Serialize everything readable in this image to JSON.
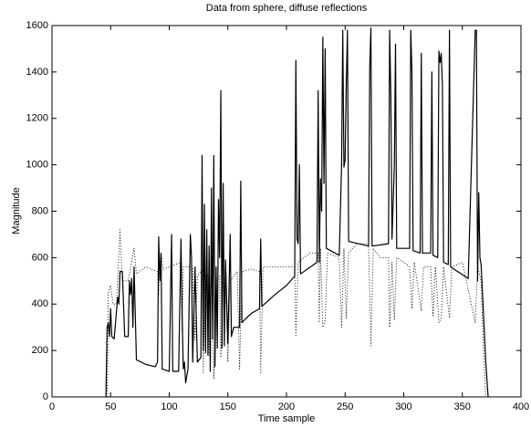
{
  "chart_data": {
    "type": "line",
    "title": "Data from sphere, diffuse reflections",
    "x_label": "Time sample",
    "y_label": "Magnitude",
    "xlim": [
      0,
      400
    ],
    "xticks": [
      0,
      50,
      100,
      150,
      200,
      250,
      300,
      350,
      400
    ],
    "ylim": [
      0,
      1600
    ],
    "yticks": [
      0,
      200,
      400,
      600,
      800,
      1000,
      1200,
      1400,
      1600
    ],
    "grid": false,
    "series": [
      {
        "color": "#000000",
        "style": "solid",
        "x": [
          46,
          47,
          48,
          49,
          50,
          51,
          53,
          56,
          57,
          58,
          60,
          62,
          65,
          66,
          67,
          68,
          69,
          70,
          72,
          80,
          88,
          90,
          91,
          92,
          93,
          94,
          100,
          102,
          103,
          108,
          110,
          111,
          112,
          113,
          114,
          116,
          118,
          119,
          120,
          122,
          124,
          127,
          128,
          129,
          130,
          131,
          132,
          133,
          134,
          135,
          136,
          137,
          138,
          139,
          140,
          141,
          142,
          143,
          144,
          145,
          146,
          147,
          148,
          150,
          152,
          153,
          155,
          160,
          161,
          162,
          170,
          177,
          178,
          179,
          190,
          200,
          207,
          208,
          209,
          210,
          211,
          212,
          226,
          227,
          228,
          229,
          230,
          231,
          232,
          233,
          234,
          245,
          247,
          248,
          249,
          250,
          251,
          252,
          253,
          270,
          271,
          272,
          273,
          287,
          288,
          289,
          290,
          292,
          293,
          294,
          305,
          306,
          307,
          308,
          314,
          315,
          316,
          323,
          324,
          325,
          329,
          330,
          331,
          332,
          333,
          334,
          338,
          339,
          340,
          355,
          361,
          362,
          363,
          364,
          365,
          366,
          370,
          372
        ],
        "values": [
          0,
          300,
          320,
          260,
          380,
          260,
          250,
          430,
          400,
          540,
          540,
          260,
          260,
          500,
          440,
          510,
          300,
          560,
          160,
          140,
          130,
          150,
          690,
          500,
          620,
          120,
          110,
          700,
          110,
          110,
          680,
          350,
          120,
          150,
          60,
          120,
          700,
          600,
          150,
          560,
          150,
          170,
          1040,
          200,
          830,
          190,
          720,
          180,
          650,
          110,
          900,
          250,
          1040,
          130,
          560,
          210,
          850,
          600,
          1320,
          210,
          920,
          220,
          590,
          230,
          700,
          260,
          300,
          300,
          930,
          320,
          360,
          380,
          680,
          390,
          440,
          480,
          520,
          1450,
          680,
          660,
          1000,
          530,
          580,
          1320,
          580,
          940,
          800,
          1550,
          920,
          1500,
          640,
          610,
          1000,
          1580,
          990,
          1020,
          1350,
          1580,
          670,
          650,
          1420,
          1590,
          650,
          660,
          1580,
          1300,
          680,
          1000,
          1520,
          640,
          640,
          1580,
          1400,
          630,
          620,
          1480,
          620,
          620,
          1400,
          610,
          600,
          1490,
          1440,
          1480,
          1340,
          580,
          570,
          1580,
          560,
          510,
          1580,
          1580,
          500,
          880,
          600,
          570,
          150,
          0
        ]
      },
      {
        "color": "#000000",
        "style": "dotted",
        "x": [
          47,
          48,
          50,
          52,
          55,
          58,
          60,
          65,
          70,
          72,
          80,
          90,
          91,
          93,
          95,
          100,
          110,
          111,
          112,
          120,
          122,
          124,
          128,
          129,
          131,
          133,
          134,
          136,
          138,
          140,
          143,
          144,
          146,
          148,
          150,
          152,
          158,
          160,
          162,
          170,
          177,
          178,
          180,
          190,
          200,
          207,
          208,
          210,
          220,
          227,
          228,
          229,
          231,
          233,
          235,
          245,
          247,
          249,
          251,
          253,
          260,
          270,
          272,
          274,
          280,
          287,
          288,
          290,
          292,
          294,
          300,
          305,
          307,
          309,
          315,
          317,
          323,
          325,
          327,
          330,
          332,
          334,
          339,
          341,
          350,
          361,
          363,
          366,
          368,
          370
        ],
        "values": [
          0,
          450,
          480,
          400,
          400,
          720,
          500,
          500,
          640,
          530,
          560,
          540,
          440,
          620,
          550,
          560,
          580,
          280,
          560,
          560,
          240,
          520,
          550,
          100,
          520,
          530,
          180,
          520,
          80,
          500,
          520,
          170,
          500,
          510,
          150,
          500,
          540,
          120,
          540,
          550,
          540,
          100,
          560,
          560,
          560,
          560,
          260,
          580,
          620,
          620,
          320,
          640,
          300,
          330,
          620,
          600,
          300,
          640,
          340,
          620,
          660,
          660,
          220,
          640,
          600,
          600,
          300,
          580,
          330,
          600,
          580,
          560,
          380,
          580,
          370,
          560,
          560,
          350,
          560,
          320,
          340,
          560,
          340,
          560,
          580,
          320,
          560,
          500,
          200,
          0
        ]
      }
    ]
  }
}
